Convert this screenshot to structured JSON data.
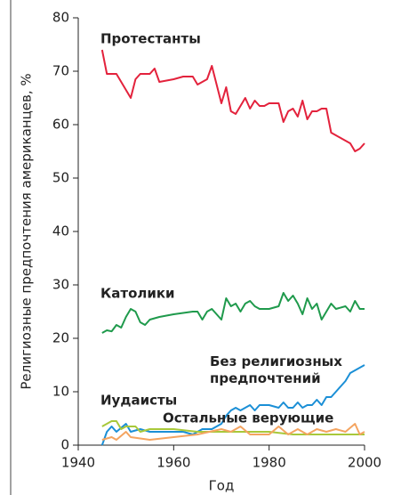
{
  "chart_data": {
    "type": "line",
    "xlabel": "Год",
    "ylabel": "Религиозные предпочтения американцев, %",
    "xlim": [
      1940,
      2000
    ],
    "xticks": [
      1940,
      1960,
      1980,
      2000
    ],
    "ylim": [
      0,
      80
    ],
    "yticks": [
      0,
      10,
      20,
      30,
      40,
      50,
      60,
      70,
      80
    ],
    "series": [
      {
        "name": "Протестанты",
        "color": "#e3223c",
        "x": [
          1945,
          1946,
          1948,
          1949,
          1950,
          1951,
          1952,
          1953,
          1955,
          1956,
          1957,
          1960,
          1962,
          1964,
          1965,
          1966,
          1967,
          1968,
          1970,
          1971,
          1972,
          1973,
          1974,
          1975,
          1976,
          1977,
          1978,
          1979,
          1980,
          1982,
          1983,
          1984,
          1985,
          1986,
          1987,
          1988,
          1989,
          1990,
          1991,
          1992,
          1993,
          1994,
          1995,
          1996,
          1997,
          1998,
          1999,
          2000
        ],
        "values": [
          74,
          69.5,
          69.5,
          68,
          66.5,
          65,
          68.5,
          69.5,
          69.5,
          70.5,
          68,
          68.5,
          69,
          69,
          67.5,
          68,
          68.5,
          71,
          64,
          67,
          62.5,
          62,
          63.5,
          65,
          63,
          64.5,
          63.5,
          63.5,
          64,
          64,
          60.5,
          62.5,
          63,
          61.5,
          64.5,
          61,
          62.5,
          62.5,
          63,
          63,
          58.5,
          58,
          57.5,
          57,
          56.5,
          55,
          55.5,
          56.5
        ]
      },
      {
        "name": "Католики",
        "color": "#1f9a4c",
        "x": [
          1945,
          1946,
          1947,
          1948,
          1949,
          1950,
          1951,
          1952,
          1953,
          1954,
          1955,
          1957,
          1960,
          1964,
          1965,
          1966,
          1967,
          1968,
          1969,
          1970,
          1971,
          1972,
          1973,
          1974,
          1975,
          1976,
          1977,
          1978,
          1980,
          1982,
          1983,
          1984,
          1985,
          1986,
          1987,
          1988,
          1989,
          1990,
          1991,
          1993,
          1994,
          1996,
          1997,
          1998,
          1999,
          2000
        ],
        "values": [
          21,
          21.5,
          21.3,
          22.5,
          22,
          24,
          25.5,
          25,
          23,
          22.5,
          23.5,
          24,
          24.5,
          25,
          25,
          23.5,
          25,
          25.5,
          24.5,
          23.5,
          27.5,
          26,
          26.5,
          25,
          26.5,
          27,
          26,
          25.5,
          25.5,
          26,
          28.5,
          27,
          28,
          26.5,
          24.5,
          27.5,
          25.5,
          26.5,
          23.5,
          26.5,
          25.5,
          26,
          25,
          27,
          25.5,
          25.5
        ]
      },
      {
        "name": "Без религиозных предпочтений",
        "color": "#1b8fd6",
        "x": [
          1945,
          1946,
          1947,
          1948,
          1950,
          1951,
          1953,
          1955,
          1960,
          1962,
          1964,
          1966,
          1968,
          1970,
          1971,
          1972,
          1973,
          1974,
          1976,
          1977,
          1978,
          1980,
          1982,
          1983,
          1984,
          1985,
          1986,
          1987,
          1988,
          1989,
          1990,
          1991,
          1992,
          1993,
          1994,
          1995,
          1996,
          1997,
          1998,
          2000
        ],
        "values": [
          0,
          2.5,
          3.5,
          2.5,
          4,
          2.5,
          3,
          2.5,
          2.5,
          2.5,
          2,
          3,
          3,
          4,
          5.5,
          6.5,
          7,
          6.5,
          7.5,
          6.5,
          7.5,
          7.5,
          7,
          8,
          7,
          7,
          8,
          7,
          7.5,
          7.5,
          8.5,
          7.5,
          9,
          9,
          10,
          11,
          12,
          13.5,
          14,
          15
        ]
      },
      {
        "name": "Иудаисты",
        "color": "#a8c83a",
        "x": [
          1945,
          1947,
          1948,
          1949,
          1950,
          1952,
          1953,
          1955,
          1960,
          1965,
          1970,
          1975,
          1980,
          1985,
          1990,
          1995,
          2000
        ],
        "values": [
          3.5,
          4.5,
          4.5,
          3,
          3.5,
          3.5,
          2.5,
          3,
          3,
          2.5,
          2.5,
          2.5,
          2.5,
          2,
          2,
          2,
          2
        ]
      },
      {
        "name": "Остальные верующие",
        "color": "#f4a460",
        "x": [
          1945,
          1947,
          1948,
          1950,
          1951,
          1955,
          1960,
          1965,
          1970,
          1972,
          1974,
          1976,
          1980,
          1982,
          1984,
          1986,
          1988,
          1990,
          1992,
          1994,
          1996,
          1998,
          1999,
          2000
        ],
        "values": [
          1,
          1.5,
          1,
          2.5,
          1.5,
          1,
          1.5,
          2,
          3,
          2.5,
          3.5,
          2,
          2,
          3.5,
          2,
          3,
          2,
          3,
          2.5,
          3,
          2.5,
          4,
          2,
          2.5
        ]
      }
    ]
  }
}
